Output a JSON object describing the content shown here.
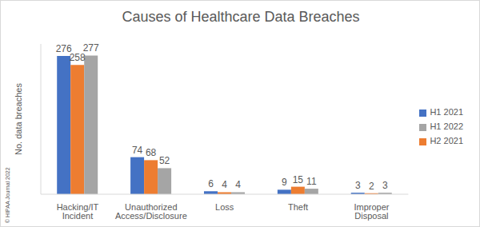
{
  "chart_data": {
    "type": "bar",
    "title": "Causes of Healthcare Data Breaches",
    "y_label": "No. data breaches",
    "categories": [
      "Hacking/IT Incident",
      "Unauthorized Access/Disclosure",
      "Loss",
      "Theft",
      "Improper Disposal"
    ],
    "series": [
      {
        "name": "H1 2021",
        "color": "#4472c4",
        "values": [
          276,
          74,
          6,
          9,
          3
        ]
      },
      {
        "name": "H2 2021",
        "color": "#ed7d31",
        "values": [
          258,
          68,
          4,
          15,
          2
        ]
      },
      {
        "name": "H1 2022",
        "color": "#a5a5a5",
        "values": [
          277,
          52,
          4,
          11,
          3
        ]
      }
    ],
    "ylim": [
      0,
      300
    ],
    "grid": false,
    "legend": "right",
    "data_labels": true,
    "tick_labels": "x",
    "annotations": [
      "© HIPAA Journal 2022"
    ]
  }
}
